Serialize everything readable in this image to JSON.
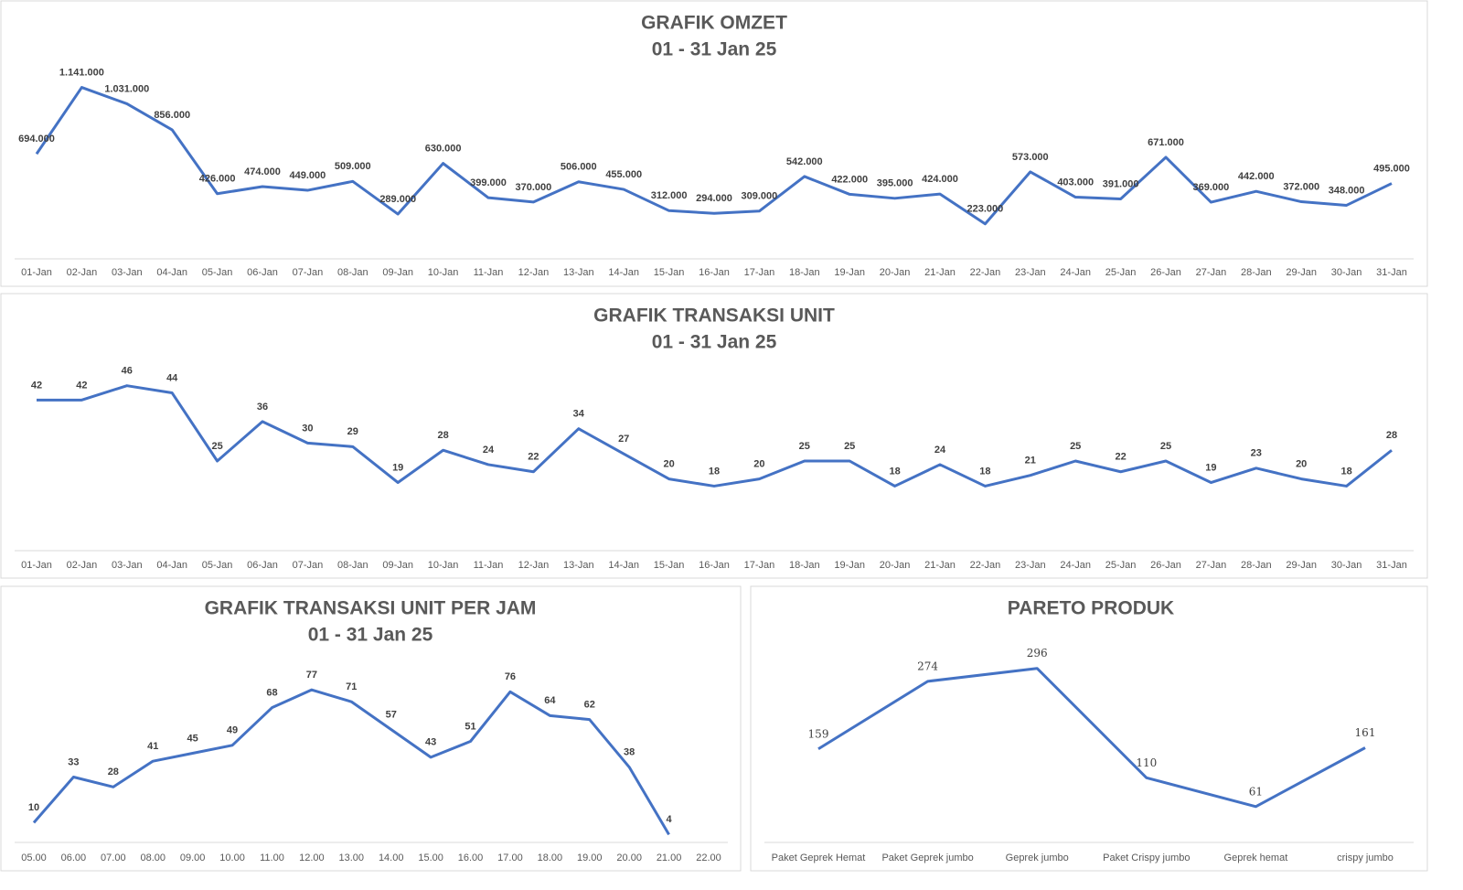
{
  "chart_data": [
    {
      "type": "line",
      "title": "GRAFIK OMZET",
      "subtitle": "01 - 31 Jan 25",
      "categories": [
        "01-Jan",
        "02-Jan",
        "03-Jan",
        "04-Jan",
        "05-Jan",
        "06-Jan",
        "07-Jan",
        "08-Jan",
        "09-Jan",
        "10-Jan",
        "11-Jan",
        "12-Jan",
        "13-Jan",
        "14-Jan",
        "15-Jan",
        "16-Jan",
        "17-Jan",
        "18-Jan",
        "19-Jan",
        "20-Jan",
        "21-Jan",
        "22-Jan",
        "23-Jan",
        "24-Jan",
        "25-Jan",
        "26-Jan",
        "27-Jan",
        "28-Jan",
        "29-Jan",
        "30-Jan",
        "31-Jan"
      ],
      "values": [
        694000,
        1141000,
        1031000,
        856000,
        426000,
        474000,
        449000,
        509000,
        289000,
        630000,
        399000,
        370000,
        506000,
        455000,
        312000,
        294000,
        309000,
        542000,
        422000,
        395000,
        424000,
        223000,
        573000,
        403000,
        391000,
        671000,
        369000,
        442000,
        372000,
        348000,
        495000
      ],
      "value_labels": [
        "694.000",
        "1.141.000",
        "1.031.000",
        "856.000",
        "426.000",
        "474.000",
        "449.000",
        "509.000",
        "289.000",
        "630.000",
        "399.000",
        "370.000",
        "506.000",
        "455.000",
        "312.000",
        "294.000",
        "309.000",
        "542.000",
        "422.000",
        "395.000",
        "424.000",
        "223.000",
        "573.000",
        "403.000",
        "391.000",
        "671.000",
        "369.000",
        "442.000",
        "372.000",
        "348.000",
        "495.000"
      ],
      "color": "#4472c4",
      "ylim": [
        0,
        1200000
      ]
    },
    {
      "type": "line",
      "title": "GRAFIK TRANSAKSI UNIT",
      "subtitle": "01 - 31 Jan 25",
      "categories": [
        "01-Jan",
        "02-Jan",
        "03-Jan",
        "04-Jan",
        "05-Jan",
        "06-Jan",
        "07-Jan",
        "08-Jan",
        "09-Jan",
        "10-Jan",
        "11-Jan",
        "12-Jan",
        "13-Jan",
        "14-Jan",
        "15-Jan",
        "16-Jan",
        "17-Jan",
        "18-Jan",
        "19-Jan",
        "20-Jan",
        "21-Jan",
        "22-Jan",
        "23-Jan",
        "24-Jan",
        "25-Jan",
        "26-Jan",
        "27-Jan",
        "28-Jan",
        "29-Jan",
        "30-Jan",
        "31-Jan"
      ],
      "values": [
        42,
        42,
        46,
        44,
        25,
        36,
        30,
        29,
        19,
        28,
        24,
        22,
        34,
        27,
        20,
        18,
        20,
        25,
        25,
        18,
        24,
        18,
        21,
        25,
        22,
        25,
        19,
        23,
        20,
        18,
        28
      ],
      "color": "#4472c4",
      "ylim": [
        0,
        50
      ]
    },
    {
      "type": "line",
      "title": "GRAFIK TRANSAKSI UNIT PER JAM",
      "subtitle": "01 - 31 Jan 25",
      "categories": [
        "05.00",
        "06.00",
        "07.00",
        "08.00",
        "09.00",
        "10.00",
        "11.00",
        "12.00",
        "13.00",
        "14.00",
        "15.00",
        "16.00",
        "17.00",
        "18.00",
        "19.00",
        "20.00",
        "21.00",
        "22.00"
      ],
      "values": [
        10,
        33,
        28,
        41,
        45,
        49,
        68,
        77,
        71,
        57,
        43,
        51,
        76,
        64,
        62,
        38,
        4,
        null
      ],
      "color": "#4472c4",
      "ylim": [
        0,
        90
      ]
    },
    {
      "type": "line",
      "title": "PARETO PRODUK",
      "categories": [
        "Paket Geprek Hemat",
        "Paket Geprek jumbo",
        "Geprek jumbo",
        "Paket Crispy jumbo",
        "Geprek hemat",
        "crispy jumbo"
      ],
      "values": [
        159,
        274,
        296,
        110,
        61,
        161
      ],
      "color": "#4472c4",
      "ylim": [
        0,
        350
      ]
    }
  ]
}
